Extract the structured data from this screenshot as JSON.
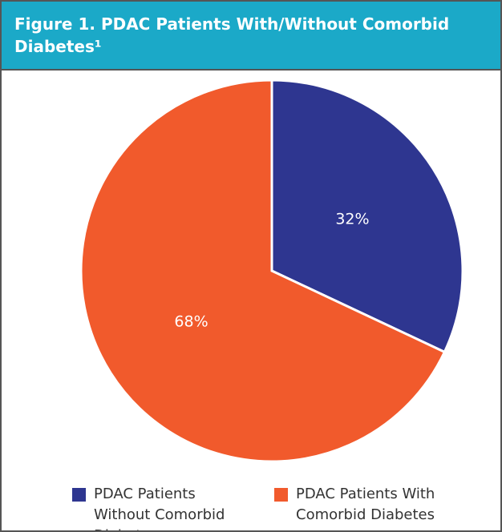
{
  "chart_data": {
    "type": "pie",
    "title": "Figure 1. PDAC Patients With/Without Comorbid Diabetes¹",
    "categories": [
      "PDAC Patients Without Comorbid Diabetes",
      "PDAC Patients With Comorbid Diabetes"
    ],
    "values": [
      32,
      68
    ],
    "value_labels": [
      "32%",
      "68%"
    ],
    "colors": [
      "#2e3690",
      "#f15a2c"
    ]
  }
}
